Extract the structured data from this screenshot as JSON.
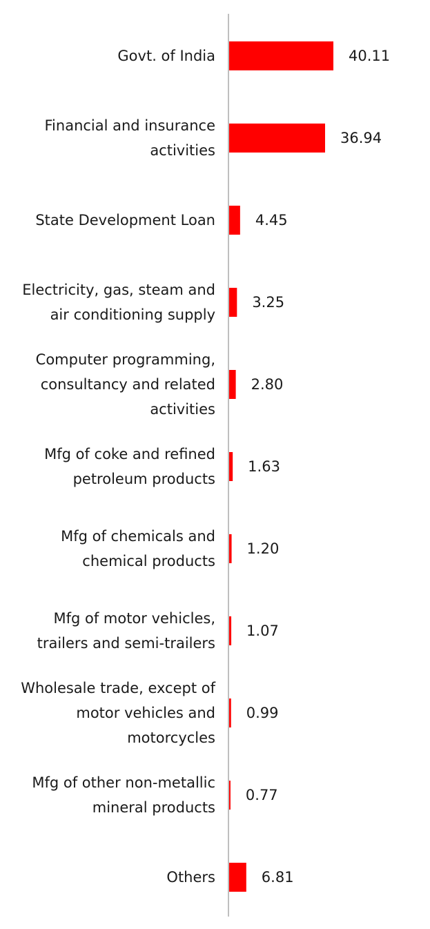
{
  "chart_data": {
    "type": "bar",
    "orientation": "horizontal",
    "title": "",
    "xlabel": "",
    "ylabel": "",
    "grid": false,
    "legend": "none",
    "bar_color": "#FF0000",
    "axis_color": "#BFBFBF",
    "xlim": [
      0,
      40.11
    ],
    "categories": [
      "Govt. of India",
      "Financial and insurance activities",
      "State Development Loan",
      "Electricity, gas, steam and air conditioning supply",
      "Computer programming, consultancy and related activities",
      "Mfg of coke and refined petroleum products",
      "Mfg of chemicals and chemical products",
      "Mfg of motor vehicles, trailers and semi-trailers",
      "Wholesale trade, except of motor vehicles and motorcycles",
      "Mfg of other non-metallic mineral products",
      "Others"
    ],
    "category_lines": [
      [
        "Govt. of India"
      ],
      [
        "Financial and insurance",
        "activities"
      ],
      [
        "State Development Loan"
      ],
      [
        "Electricity, gas, steam and",
        "air conditioning supply"
      ],
      [
        "Computer programming,",
        "consultancy and related",
        "activities"
      ],
      [
        "Mfg of coke and refined",
        "petroleum products"
      ],
      [
        "Mfg of chemicals and",
        "chemical products"
      ],
      [
        "Mfg of motor vehicles,",
        "trailers and semi-trailers"
      ],
      [
        "Wholesale trade, except of",
        "motor vehicles and",
        "motorcycles"
      ],
      [
        "Mfg of other non-metallic",
        "mineral products"
      ],
      [
        "Others"
      ]
    ],
    "values": [
      40.11,
      36.94,
      4.45,
      3.25,
      2.8,
      1.63,
      1.2,
      1.07,
      0.99,
      0.77,
      6.81
    ],
    "value_labels": [
      "40.11",
      "36.94",
      "4.45",
      "3.25",
      "2.80",
      "1.63",
      "1.20",
      "1.07",
      "0.99",
      "0.77",
      "6.81"
    ]
  }
}
